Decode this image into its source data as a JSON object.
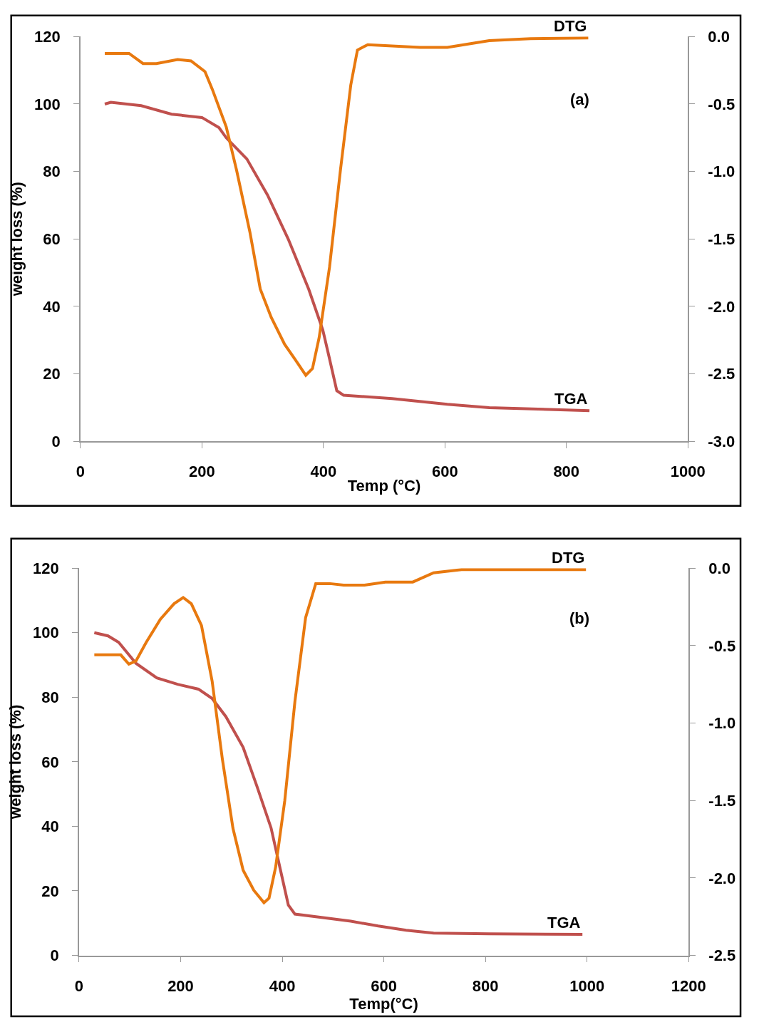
{
  "chart_data": [
    {
      "type": "line",
      "xlabel": "Temp (°C)",
      "ylabel": "weight loss (%)",
      "annotations": [
        "(a)"
      ],
      "xlim": [
        0,
        1000
      ],
      "xticks": [
        0,
        200,
        400,
        600,
        800,
        1000
      ],
      "ylim": [
        0,
        120
      ],
      "yticks": [
        0,
        20,
        40,
        60,
        80,
        100,
        120
      ],
      "y2lim": [
        -3,
        0
      ],
      "y2ticks": [
        {
          "value": -3,
          "label": "-3.0"
        },
        {
          "value": -2.5,
          "label": "-2.5"
        },
        {
          "value": -2,
          "label": "-2.0"
        },
        {
          "value": -1.5,
          "label": "-1.5"
        },
        {
          "value": -1,
          "label": "-1.0"
        },
        {
          "value": -0.5,
          "label": "-0.5"
        },
        {
          "value": 0,
          "label": "0.0"
        }
      ],
      "series": [
        {
          "name": "DTG",
          "color": "#e8790f",
          "axis": "y2",
          "x": [
            40,
            80,
            103,
            125,
            160,
            182,
            205,
            217,
            240,
            257,
            279,
            296,
            314,
            336,
            353,
            371,
            382,
            393,
            410,
            428,
            445,
            456,
            473,
            559,
            604,
            673,
            741,
            836
          ],
          "values": [
            -0.125,
            -0.125,
            -0.2,
            -0.2,
            -0.17,
            -0.18,
            -0.26,
            -0.39,
            -0.67,
            -0.99,
            -1.45,
            -1.87,
            -2.08,
            -2.28,
            -2.39,
            -2.51,
            -2.46,
            -2.23,
            -1.71,
            -0.99,
            -0.36,
            -0.1,
            -0.06,
            -0.08,
            -0.08,
            -0.03,
            -0.016,
            -0.01
          ]
        },
        {
          "name": "TGA",
          "color": "#c0504d",
          "x": [
            40,
            50,
            100,
            150,
            200,
            228,
            240,
            274,
            308,
            342,
            376,
            399,
            410,
            422,
            433,
            513,
            604,
            673,
            838
          ],
          "values": [
            100,
            100.5,
            99.5,
            97,
            96,
            93,
            90,
            83.7,
            73,
            60,
            45,
            33,
            24.5,
            15,
            13.7,
            12.7,
            11,
            10,
            9.1
          ]
        }
      ]
    },
    {
      "type": "line",
      "xlabel": "Temp(°C)",
      "ylabel": "weight loss (%)",
      "annotations": [
        "(b)"
      ],
      "xlim": [
        0,
        1200
      ],
      "xticks": [
        0,
        200,
        400,
        600,
        800,
        1000,
        1200
      ],
      "ylim": [
        0,
        120
      ],
      "yticks": [
        0,
        20,
        40,
        60,
        80,
        100,
        120
      ],
      "y2lim": [
        -2.5,
        0
      ],
      "y2ticks": [
        {
          "value": -2.5,
          "label": "-2.5"
        },
        {
          "value": -2,
          "label": "-2.0"
        },
        {
          "value": -1.5,
          "label": "-1.5"
        },
        {
          "value": -1,
          "label": "-1.0"
        },
        {
          "value": -0.5,
          "label": "-0.5"
        },
        {
          "value": 0,
          "label": "0.0"
        }
      ],
      "series": [
        {
          "name": "DTG",
          "color": "#e8790f",
          "axis": "y2",
          "x": [
            30,
            82,
            98,
            112,
            132,
            160,
            187,
            205,
            221,
            241,
            262,
            282,
            303,
            323,
            344,
            364,
            374,
            387,
            405,
            425,
            446,
            466,
            494,
            521,
            562,
            603,
            657,
            698,
            753,
            998
          ],
          "values": [
            -0.56,
            -0.56,
            -0.62,
            -0.6,
            -0.48,
            -0.33,
            -0.23,
            -0.19,
            -0.23,
            -0.37,
            -0.73,
            -1.23,
            -1.68,
            -1.95,
            -2.08,
            -2.16,
            -2.13,
            -1.93,
            -1.5,
            -0.86,
            -0.32,
            -0.1,
            -0.1,
            -0.11,
            -0.11,
            -0.09,
            -0.09,
            -0.03,
            -0.01,
            -0.01
          ]
        },
        {
          "name": "TGA",
          "color": "#c0504d",
          "x": [
            30,
            57,
            78,
            112,
            153,
            194,
            235,
            262,
            289,
            323,
            350,
            378,
            398,
            412,
            425,
            480,
            535,
            589,
            644,
            698,
            807,
            991
          ],
          "values": [
            100,
            99,
            97,
            90.5,
            86,
            84,
            82.5,
            79.6,
            74,
            64.5,
            52.5,
            39.5,
            25.4,
            15.6,
            12.8,
            11.7,
            10.6,
            9.1,
            7.8,
            6.9,
            6.7,
            6.5
          ]
        }
      ]
    }
  ]
}
